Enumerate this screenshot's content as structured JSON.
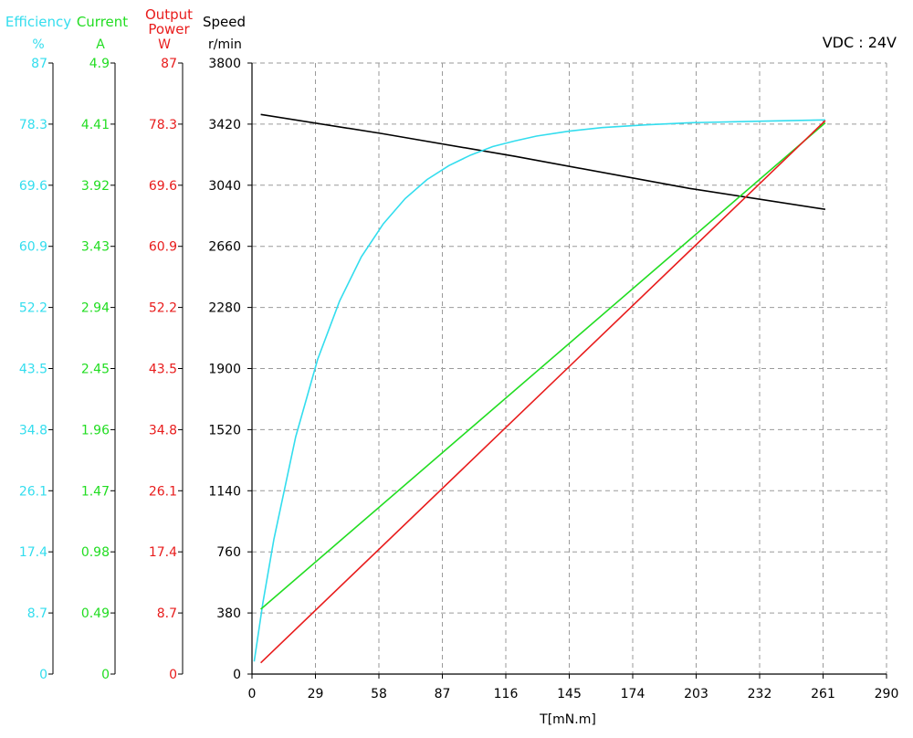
{
  "chart_data": {
    "type": "line",
    "annotation": "VDC : 24V",
    "xlabel": "T[mN.m]",
    "xlim": [
      0,
      290
    ],
    "x_ticks": [
      "0",
      "29",
      "58",
      "87",
      "116",
      "145",
      "174",
      "203",
      "232",
      "261",
      "290"
    ],
    "axes": {
      "speed": {
        "label": "Speed",
        "unit": "r/min",
        "color": "#000000",
        "range": [
          0,
          3800
        ],
        "ticks": [
          "3800",
          "3420",
          "3040",
          "2660",
          "2280",
          "1900",
          "1520",
          "1140",
          "760",
          "380",
          "0"
        ]
      },
      "efficiency": {
        "label": "Efficiency",
        "unit": "%",
        "color": "#33DDEE",
        "range": [
          0,
          87
        ],
        "ticks": [
          "87",
          "78.3",
          "69.6",
          "60.9",
          "52.2",
          "43.5",
          "34.8",
          "26.1",
          "17.4",
          "8.7",
          "0"
        ]
      },
      "current": {
        "label": "Current",
        "unit": "A",
        "color": "#22DD22",
        "range": [
          0,
          4.9
        ],
        "ticks": [
          "4.9",
          "4.41",
          "3.92",
          "3.43",
          "2.94",
          "2.45",
          "1.96",
          "1.47",
          "0.98",
          "0.49",
          "0"
        ]
      },
      "power": {
        "label": "Output Power",
        "unit": "W",
        "color": "#E81C1C",
        "range": [
          0,
          87
        ],
        "ticks": [
          "87",
          "78.3",
          "69.6",
          "60.9",
          "52.2",
          "43.5",
          "34.8",
          "26.1",
          "17.4",
          "8.7",
          "0"
        ]
      }
    },
    "series": [
      {
        "axis": "speed",
        "color": "#000000",
        "points": [
          [
            4,
            3480
          ],
          [
            60,
            3360
          ],
          [
            120,
            3220
          ],
          [
            200,
            3020
          ],
          [
            262,
            2890
          ]
        ]
      },
      {
        "axis": "efficiency",
        "color": "#33DDEE",
        "points": [
          [
            1,
            1.8
          ],
          [
            5,
            10.2
          ],
          [
            10,
            19.2
          ],
          [
            20,
            33.8
          ],
          [
            30,
            44.8
          ],
          [
            40,
            53.1
          ],
          [
            50,
            59.4
          ],
          [
            60,
            64.1
          ],
          [
            70,
            67.7
          ],
          [
            80,
            70.4
          ],
          [
            90,
            72.4
          ],
          [
            100,
            73.9
          ],
          [
            110,
            75.1
          ],
          [
            120,
            75.9
          ],
          [
            130,
            76.6
          ],
          [
            145,
            77.3
          ],
          [
            160,
            77.8
          ],
          [
            180,
            78.2
          ],
          [
            200,
            78.5
          ],
          [
            230,
            78.7
          ],
          [
            262,
            78.9
          ]
        ]
      },
      {
        "axis": "current",
        "color": "#22DD22",
        "points": [
          [
            4,
            0.52
          ],
          [
            262,
            4.42
          ]
        ]
      },
      {
        "axis": "power",
        "color": "#E81C1C",
        "points": [
          [
            4,
            1.6
          ],
          [
            262,
            78.8
          ]
        ]
      }
    ]
  }
}
